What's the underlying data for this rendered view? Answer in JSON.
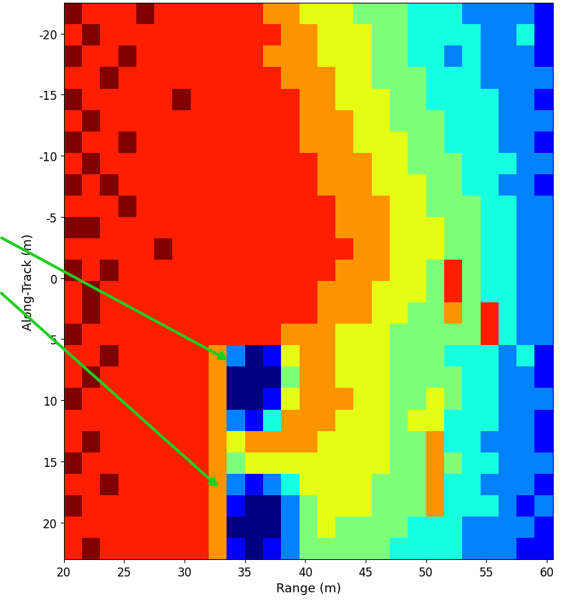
{
  "chart_data": {
    "type": "heatmap",
    "x_label": "Range (m)",
    "y_label": "Along-Track (m)",
    "xlim": [
      20,
      60.5
    ],
    "ylim": [
      23,
      -22.5
    ],
    "xticks": [
      20,
      25,
      30,
      35,
      40,
      45,
      50,
      55,
      60
    ],
    "yticks": [
      -20,
      -15,
      -10,
      -5,
      0,
      5,
      10,
      15,
      20
    ],
    "color": "jet",
    "cells": [
      [
        9,
        8,
        8,
        8,
        9,
        8,
        8,
        8,
        8,
        8,
        8,
        7,
        7,
        6,
        6,
        6,
        5,
        5,
        5,
        4,
        4,
        4,
        3,
        3,
        3,
        3,
        2
      ],
      [
        8,
        9,
        8,
        8,
        8,
        8,
        8,
        8,
        8,
        8,
        8,
        8,
        7,
        7,
        6,
        6,
        6,
        5,
        5,
        4,
        4,
        4,
        4,
        3,
        3,
        4,
        2
      ],
      [
        9,
        8,
        8,
        9,
        8,
        8,
        8,
        8,
        8,
        8,
        8,
        7,
        7,
        7,
        6,
        6,
        6,
        5,
        5,
        4,
        4,
        3,
        4,
        3,
        3,
        3,
        2
      ],
      [
        8,
        8,
        9,
        8,
        8,
        8,
        8,
        8,
        8,
        8,
        8,
        8,
        7,
        7,
        7,
        6,
        6,
        5,
        5,
        5,
        4,
        4,
        4,
        3,
        3,
        3,
        3
      ],
      [
        9,
        8,
        8,
        8,
        8,
        8,
        9,
        8,
        8,
        8,
        8,
        8,
        8,
        7,
        7,
        6,
        6,
        6,
        5,
        5,
        4,
        4,
        4,
        4,
        3,
        3,
        2
      ],
      [
        8,
        9,
        8,
        8,
        8,
        8,
        8,
        8,
        8,
        8,
        8,
        8,
        8,
        7,
        7,
        7,
        6,
        6,
        5,
        5,
        5,
        4,
        4,
        4,
        3,
        3,
        3
      ],
      [
        9,
        8,
        8,
        9,
        8,
        8,
        8,
        8,
        8,
        8,
        8,
        8,
        8,
        7,
        7,
        7,
        6,
        6,
        6,
        5,
        5,
        4,
        4,
        4,
        3,
        3,
        2
      ],
      [
        8,
        9,
        8,
        8,
        8,
        8,
        8,
        8,
        8,
        8,
        8,
        8,
        8,
        8,
        7,
        7,
        7,
        6,
        6,
        5,
        5,
        5,
        4,
        4,
        4,
        3,
        3
      ],
      [
        9,
        8,
        9,
        8,
        8,
        8,
        8,
        8,
        8,
        8,
        8,
        8,
        8,
        8,
        7,
        7,
        7,
        6,
        6,
        6,
        5,
        5,
        4,
        4,
        3,
        3,
        2
      ],
      [
        8,
        8,
        8,
        9,
        8,
        8,
        8,
        8,
        8,
        8,
        8,
        8,
        8,
        8,
        8,
        7,
        7,
        7,
        6,
        6,
        5,
        5,
        5,
        4,
        4,
        3,
        3
      ],
      [
        9,
        9,
        8,
        8,
        8,
        8,
        8,
        8,
        8,
        8,
        8,
        8,
        8,
        8,
        8,
        7,
        7,
        7,
        6,
        6,
        6,
        5,
        5,
        4,
        4,
        3,
        3
      ],
      [
        8,
        8,
        8,
        8,
        8,
        9,
        8,
        8,
        8,
        8,
        8,
        8,
        8,
        8,
        8,
        8,
        7,
        7,
        6,
        6,
        6,
        5,
        5,
        4,
        4,
        3,
        3
      ],
      [
        9,
        8,
        9,
        8,
        8,
        8,
        8,
        8,
        8,
        8,
        8,
        8,
        8,
        8,
        8,
        7,
        7,
        7,
        6,
        6,
        5,
        8,
        5,
        4,
        4,
        3,
        3
      ],
      [
        8,
        9,
        8,
        8,
        8,
        8,
        8,
        8,
        8,
        8,
        8,
        8,
        8,
        8,
        7,
        7,
        7,
        6,
        6,
        6,
        5,
        8,
        5,
        4,
        4,
        3,
        3
      ],
      [
        8,
        9,
        8,
        8,
        8,
        8,
        8,
        8,
        8,
        8,
        8,
        8,
        8,
        8,
        7,
        7,
        7,
        6,
        6,
        5,
        5,
        7,
        5,
        8,
        4,
        3,
        3
      ],
      [
        9,
        8,
        8,
        8,
        8,
        8,
        8,
        8,
        8,
        8,
        8,
        8,
        7,
        7,
        7,
        6,
        6,
        6,
        5,
        5,
        5,
        5,
        5,
        8,
        4,
        3,
        3
      ],
      [
        8,
        8,
        9,
        8,
        8,
        8,
        8,
        8,
        7,
        3,
        1,
        2,
        6,
        7,
        7,
        6,
        6,
        6,
        5,
        5,
        5,
        4,
        4,
        4,
        3,
        4,
        2
      ],
      [
        8,
        9,
        8,
        8,
        8,
        8,
        8,
        8,
        7,
        1,
        1,
        1,
        5,
        7,
        7,
        6,
        6,
        6,
        5,
        5,
        5,
        5,
        4,
        4,
        3,
        3,
        2
      ],
      [
        9,
        8,
        8,
        8,
        8,
        8,
        8,
        8,
        7,
        1,
        1,
        2,
        6,
        7,
        7,
        7,
        6,
        6,
        5,
        5,
        6,
        5,
        4,
        4,
        3,
        3,
        3
      ],
      [
        8,
        8,
        8,
        8,
        8,
        8,
        8,
        8,
        7,
        3,
        2,
        4,
        7,
        7,
        7,
        6,
        6,
        6,
        5,
        6,
        6,
        4,
        4,
        4,
        3,
        3,
        2
      ],
      [
        8,
        9,
        8,
        8,
        8,
        8,
        8,
        8,
        7,
        6,
        7,
        7,
        7,
        7,
        6,
        6,
        6,
        6,
        5,
        5,
        7,
        4,
        4,
        3,
        3,
        3,
        2
      ],
      [
        9,
        8,
        8,
        8,
        8,
        8,
        8,
        8,
        7,
        5,
        6,
        6,
        6,
        6,
        6,
        6,
        6,
        6,
        5,
        5,
        7,
        5,
        4,
        4,
        3,
        3,
        3
      ],
      [
        8,
        8,
        9,
        8,
        8,
        8,
        8,
        8,
        7,
        3,
        2,
        3,
        4,
        6,
        6,
        6,
        6,
        5,
        5,
        5,
        7,
        4,
        4,
        3,
        3,
        3,
        2
      ],
      [
        9,
        8,
        8,
        8,
        8,
        8,
        8,
        8,
        7,
        2,
        1,
        1,
        3,
        5,
        6,
        6,
        6,
        5,
        5,
        5,
        7,
        4,
        4,
        4,
        3,
        2,
        3
      ],
      [
        8,
        8,
        8,
        8,
        8,
        8,
        8,
        8,
        7,
        1,
        1,
        1,
        3,
        5,
        6,
        5,
        5,
        5,
        5,
        4,
        4,
        4,
        3,
        3,
        3,
        3,
        2
      ],
      [
        8,
        9,
        8,
        8,
        8,
        8,
        8,
        8,
        7,
        2,
        1,
        2,
        3,
        5,
        5,
        5,
        5,
        5,
        4,
        4,
        4,
        4,
        3,
        3,
        3,
        2,
        2
      ]
    ]
  }
}
